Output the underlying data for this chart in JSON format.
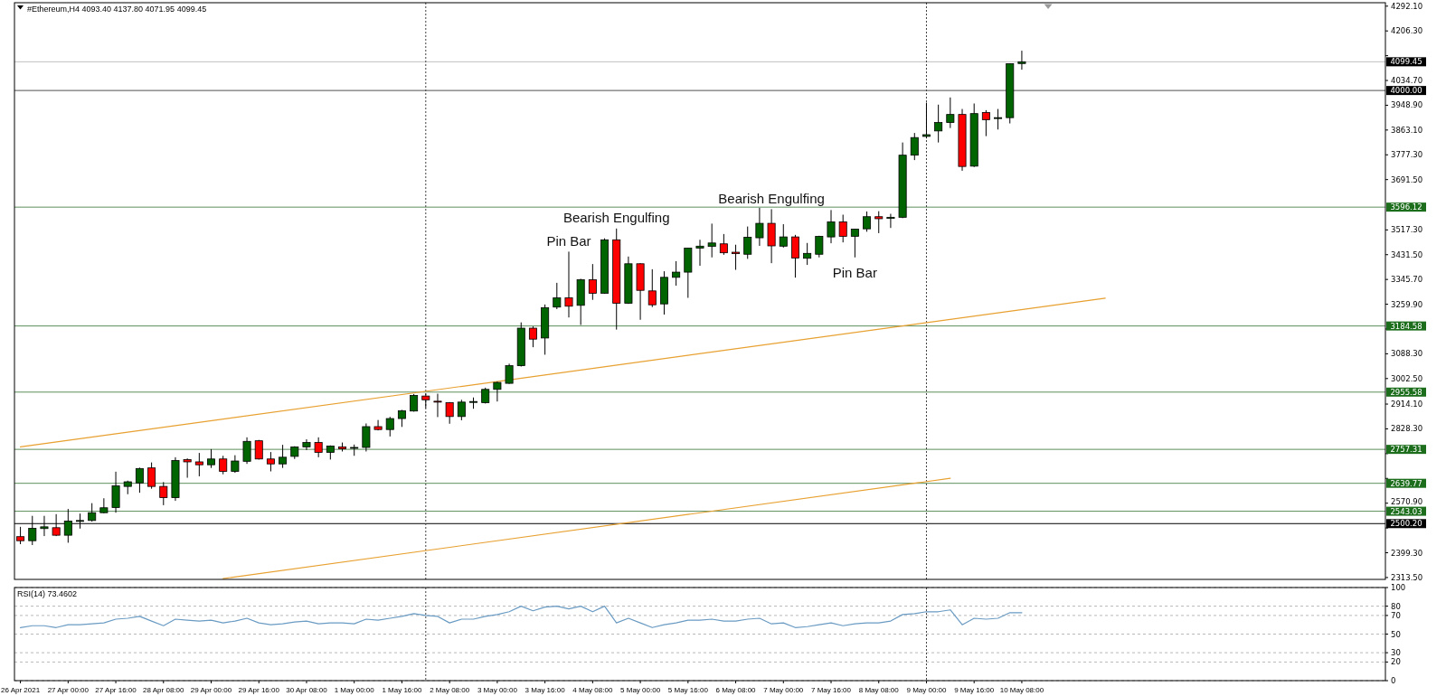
{
  "chart_data": [
    {
      "type": "candlestick",
      "title": "#Ethereum,H4 4093.40 4137.80 4071.95 4099.45",
      "x": [
        "2021-04-26T08:00",
        "2021-04-26T12:00",
        "2021-04-26T16:00",
        "2021-04-26T20:00",
        "2021-04-27T00:00",
        "2021-04-27T04:00",
        "2021-04-27T08:00",
        "2021-04-27T12:00",
        "2021-04-27T16:00",
        "2021-04-27T20:00",
        "2021-04-28T00:00",
        "2021-04-28T04:00",
        "2021-04-28T08:00",
        "2021-04-28T12:00",
        "2021-04-28T16:00",
        "2021-04-28T20:00",
        "2021-04-29T00:00",
        "2021-04-29T04:00",
        "2021-04-29T08:00",
        "2021-04-29T12:00",
        "2021-04-29T16:00",
        "2021-04-29T20:00",
        "2021-04-30T00:00",
        "2021-04-30T04:00",
        "2021-04-30T08:00",
        "2021-04-30T12:00",
        "2021-04-30T16:00",
        "2021-04-30T20:00",
        "2021-05-01T00:00",
        "2021-05-01T04:00",
        "2021-05-01T08:00",
        "2021-05-01T12:00",
        "2021-05-01T16:00",
        "2021-05-01T20:00",
        "2021-05-02T00:00",
        "2021-05-02T04:00",
        "2021-05-02T08:00",
        "2021-05-02T12:00",
        "2021-05-02T16:00",
        "2021-05-02T20:00",
        "2021-05-03T00:00",
        "2021-05-03T04:00",
        "2021-05-03T08:00",
        "2021-05-03T12:00",
        "2021-05-03T16:00",
        "2021-05-03T20:00",
        "2021-05-04T00:00",
        "2021-05-04T04:00",
        "2021-05-04T08:00",
        "2021-05-04T12:00",
        "2021-05-04T16:00",
        "2021-05-04T20:00",
        "2021-05-05T00:00",
        "2021-05-05T04:00",
        "2021-05-05T08:00",
        "2021-05-05T12:00",
        "2021-05-05T16:00",
        "2021-05-05T20:00",
        "2021-05-06T00:00",
        "2021-05-06T04:00",
        "2021-05-06T08:00",
        "2021-05-06T12:00",
        "2021-05-06T16:00",
        "2021-05-06T20:00",
        "2021-05-07T00:00",
        "2021-05-07T04:00",
        "2021-05-07T08:00",
        "2021-05-07T12:00",
        "2021-05-07T16:00",
        "2021-05-07T20:00",
        "2021-05-08T00:00",
        "2021-05-08T04:00",
        "2021-05-08T08:00",
        "2021-05-08T12:00",
        "2021-05-08T16:00",
        "2021-05-08T20:00",
        "2021-05-09T00:00",
        "2021-05-09T04:00",
        "2021-05-09T08:00",
        "2021-05-09T12:00",
        "2021-05-09T16:00",
        "2021-05-09T20:00",
        "2021-05-10T00:00",
        "2021-05-10T04:00",
        "2021-05-10T08:00"
      ],
      "ohlc": [
        [
          2455,
          2489,
          2429,
          2441
        ],
        [
          2441,
          2527,
          2426,
          2484
        ],
        [
          2483,
          2527,
          2457,
          2489
        ],
        [
          2486,
          2533,
          2457,
          2460
        ],
        [
          2460,
          2551,
          2434,
          2509
        ],
        [
          2508,
          2535,
          2483,
          2511
        ],
        [
          2511,
          2571,
          2507,
          2538
        ],
        [
          2538,
          2588,
          2536,
          2555
        ],
        [
          2556,
          2680,
          2538,
          2631
        ],
        [
          2629,
          2649,
          2602,
          2645
        ],
        [
          2641,
          2694,
          2607,
          2691
        ],
        [
          2693,
          2712,
          2621,
          2629
        ],
        [
          2629,
          2644,
          2564,
          2590
        ],
        [
          2590,
          2730,
          2579,
          2719
        ],
        [
          2722,
          2726,
          2659,
          2714
        ],
        [
          2714,
          2745,
          2664,
          2704
        ],
        [
          2704,
          2758,
          2693,
          2724
        ],
        [
          2724,
          2735,
          2671,
          2681
        ],
        [
          2681,
          2737,
          2676,
          2717
        ],
        [
          2716,
          2799,
          2707,
          2785
        ],
        [
          2787,
          2790,
          2722,
          2724
        ],
        [
          2724,
          2748,
          2681,
          2707
        ],
        [
          2707,
          2773,
          2693,
          2730
        ],
        [
          2733,
          2768,
          2724,
          2766
        ],
        [
          2766,
          2792,
          2755,
          2781
        ],
        [
          2781,
          2799,
          2730,
          2747
        ],
        [
          2747,
          2771,
          2722,
          2769
        ],
        [
          2766,
          2781,
          2750,
          2759
        ],
        [
          2761,
          2774,
          2735,
          2764
        ],
        [
          2764,
          2847,
          2750,
          2836
        ],
        [
          2836,
          2859,
          2823,
          2826
        ],
        [
          2826,
          2870,
          2802,
          2864
        ],
        [
          2864,
          2894,
          2835,
          2891
        ],
        [
          2890,
          2949,
          2888,
          2944
        ],
        [
          2942,
          2950,
          2900,
          2929
        ],
        [
          2924,
          2950,
          2869,
          2921
        ],
        [
          2919,
          2921,
          2846,
          2871
        ],
        [
          2871,
          2929,
          2858,
          2921
        ],
        [
          2920,
          2937,
          2898,
          2923
        ],
        [
          2919,
          2971,
          2916,
          2965
        ],
        [
          2965,
          2992,
          2923,
          2989
        ],
        [
          2986,
          3054,
          2984,
          3047
        ],
        [
          3047,
          3197,
          3044,
          3177
        ],
        [
          3177,
          3183,
          3111,
          3139
        ],
        [
          3143,
          3259,
          3085,
          3248
        ],
        [
          3250,
          3334,
          3243,
          3282
        ],
        [
          3282,
          3442,
          3214,
          3253
        ],
        [
          3256,
          3348,
          3188,
          3345
        ],
        [
          3345,
          3399,
          3275,
          3298
        ],
        [
          3298,
          3488,
          3296,
          3483
        ],
        [
          3483,
          3522,
          3172,
          3263
        ],
        [
          3263,
          3425,
          3261,
          3400
        ],
        [
          3400,
          3402,
          3206,
          3308
        ],
        [
          3306,
          3381,
          3250,
          3258
        ],
        [
          3261,
          3374,
          3224,
          3353
        ],
        [
          3353,
          3409,
          3324,
          3371
        ],
        [
          3371,
          3455,
          3282,
          3454
        ],
        [
          3454,
          3483,
          3393,
          3461
        ],
        [
          3460,
          3539,
          3422,
          3472
        ],
        [
          3469,
          3503,
          3431,
          3438
        ],
        [
          3440,
          3466,
          3379,
          3435
        ],
        [
          3433,
          3529,
          3417,
          3492
        ],
        [
          3490,
          3594,
          3462,
          3540
        ],
        [
          3540,
          3589,
          3402,
          3462
        ],
        [
          3461,
          3537,
          3456,
          3493
        ],
        [
          3493,
          3500,
          3352,
          3420
        ],
        [
          3419,
          3472,
          3396,
          3436
        ],
        [
          3433,
          3497,
          3422,
          3495
        ],
        [
          3493,
          3586,
          3471,
          3545
        ],
        [
          3545,
          3570,
          3474,
          3495
        ],
        [
          3495,
          3521,
          3422,
          3520
        ],
        [
          3521,
          3581,
          3511,
          3563
        ],
        [
          3563,
          3582,
          3506,
          3556
        ],
        [
          3557,
          3573,
          3524,
          3561
        ],
        [
          3561,
          3820,
          3558,
          3776
        ],
        [
          3776,
          3853,
          3759,
          3837
        ],
        [
          3841,
          3958,
          3834,
          3847
        ],
        [
          3860,
          3951,
          3820,
          3889
        ],
        [
          3889,
          3976,
          3870,
          3917
        ],
        [
          3917,
          3936,
          3722,
          3737
        ],
        [
          3738,
          3955,
          3735,
          3920
        ],
        [
          3924,
          3932,
          3842,
          3899
        ],
        [
          3903,
          3936,
          3865,
          3906
        ],
        [
          3906,
          4093,
          3886,
          4093
        ],
        [
          4093.4,
          4137.8,
          4071.95,
          4099.45
        ]
      ],
      "colors": [
        "#ff0000",
        "#006400",
        "#006400",
        "#ff0000",
        "#006400",
        "#006400",
        "#006400",
        "#006400",
        "#006400",
        "#006400",
        "#006400",
        "#ff0000",
        "#ff0000",
        "#006400",
        "#ff0000",
        "#ff0000",
        "#006400",
        "#ff0000",
        "#006400",
        "#006400",
        "#ff0000",
        "#ff0000",
        "#006400",
        "#006400",
        "#006400",
        "#ff0000",
        "#006400",
        "#ff0000",
        "#006400",
        "#006400",
        "#ff0000",
        "#006400",
        "#006400",
        "#006400",
        "#ff0000",
        "#ff0000",
        "#ff0000",
        "#006400",
        "#006400",
        "#006400",
        "#006400",
        "#006400",
        "#006400",
        "#ff0000",
        "#006400",
        "#006400",
        "#ff0000",
        "#006400",
        "#ff0000",
        "#006400",
        "#ff0000",
        "#006400",
        "#ff0000",
        "#ff0000",
        "#006400",
        "#006400",
        "#006400",
        "#006400",
        "#006400",
        "#ff0000",
        "#ff0000",
        "#006400",
        "#006400",
        "#ff0000",
        "#006400",
        "#ff0000",
        "#006400",
        "#006400",
        "#006400",
        "#ff0000",
        "#006400",
        "#006400",
        "#ff0000",
        "#006400",
        "#006400",
        "#006400",
        "#006400",
        "#006400",
        "#006400",
        "#ff0000",
        "#006400",
        "#ff0000",
        "#006400",
        "#006400",
        "#006400"
      ],
      "xlim": [
        "2021-04-26T06:00",
        "2021-05-15T10:00"
      ],
      "ylim": [
        2307,
        4304
      ],
      "yticks": [
        {
          "value": 4292.1,
          "label": "4292.10"
        },
        {
          "value": 4206.3,
          "label": "4206.30"
        },
        {
          "value": 4120.5,
          "label": null
        },
        {
          "value": 4034.7,
          "label": "4034.70"
        },
        {
          "value": 3948.9,
          "label": "3948.90"
        },
        {
          "value": 3863.1,
          "label": "3863.10"
        },
        {
          "value": 3777.3,
          "label": "3777.30"
        },
        {
          "value": 3691.5,
          "label": "3691.50"
        },
        {
          "value": 3517.3,
          "label": "3517.30"
        },
        {
          "value": 3431.5,
          "label": "3431.50"
        },
        {
          "value": 3345.7,
          "label": "3345.70"
        },
        {
          "value": 3259.9,
          "label": "3259.90"
        },
        {
          "value": 3174.1,
          "label": null
        },
        {
          "value": 3088.3,
          "label": "3088.30"
        },
        {
          "value": 3002.5,
          "label": "3002.50"
        },
        {
          "value": 2914.1,
          "label": "2914.10"
        },
        {
          "value": 2828.3,
          "label": "2828.30"
        },
        {
          "value": 2742.5,
          "label": null
        },
        {
          "value": 2656.7,
          "label": null
        },
        {
          "value": 2570.9,
          "label": "2570.90"
        },
        {
          "value": 2485.1,
          "label": null
        },
        {
          "value": 2399.3,
          "label": "2399.30"
        },
        {
          "value": 2313.5,
          "label": "2313.50"
        }
      ],
      "tick_labels": "y",
      "series": [
        {
          "type": "line",
          "color": "#e8a030",
          "x": [
            "2021-04-26T08:00",
            "2021-05-11T12:00"
          ],
          "values": [
            2766,
            3281
          ]
        },
        {
          "type": "line",
          "color": "#e8a030",
          "x": [
            "2021-04-29T04:00",
            "2021-05-09T08:00"
          ],
          "values": [
            2310,
            2657
          ]
        }
      ],
      "ref_lines": [
        {
          "axis": "y",
          "value": 4099.45,
          "label": "4099.45",
          "color": "#c0c0c0"
        },
        {
          "axis": "y",
          "value": 4000,
          "label": "4000.00",
          "color": "#505050"
        },
        {
          "axis": "y",
          "value": 3596.12,
          "label": "3596.12",
          "color": "#5c8f5c"
        },
        {
          "axis": "y",
          "value": 3184.58,
          "label": "3184.58",
          "color": "#5c8f5c"
        },
        {
          "axis": "y",
          "value": 2955.58,
          "label": "2955.58",
          "color": "#5c8f5c"
        },
        {
          "axis": "y",
          "value": 2757.31,
          "label": "2757.31",
          "color": "#5c8f5c"
        },
        {
          "axis": "y",
          "value": 2639.77,
          "label": "2639.77",
          "color": "#5c8f5c"
        },
        {
          "axis": "y",
          "value": 2543.03,
          "label": "2543.03",
          "color": "#5c8f5c"
        },
        {
          "axis": "y",
          "value": 2500.2,
          "label": "2500.20",
          "color": "#000000"
        },
        {
          "axis": "x",
          "value": "2021-05-02T00:00",
          "color": "#404040",
          "line_style": "dotted"
        },
        {
          "axis": "x",
          "value": "2021-05-09T00:00",
          "color": "#404040",
          "line_style": "dotted"
        }
      ],
      "annotations": [
        {
          "text": "Pin Bar",
          "x": "2021-05-04T00:00",
          "y": 3442
        },
        {
          "text": "Bearish Engulfing",
          "x": "2021-05-04T16:00",
          "y": 3522
        },
        {
          "text": "Bearish Engulfing",
          "x": "2021-05-06T20:00",
          "y": 3589
        },
        {
          "text": "Pin Bar",
          "x": "2021-05-08T00:00",
          "y": 3422
        }
      ]
    },
    {
      "type": "line",
      "title": "RSI(14) 73.4602",
      "x": [
        "2021-04-26T08:00",
        "2021-04-26T12:00",
        "2021-04-26T16:00",
        "2021-04-26T20:00",
        "2021-04-27T00:00",
        "2021-04-27T04:00",
        "2021-04-27T08:00",
        "2021-04-27T12:00",
        "2021-04-27T16:00",
        "2021-04-27T20:00",
        "2021-04-28T00:00",
        "2021-04-28T04:00",
        "2021-04-28T08:00",
        "2021-04-28T12:00",
        "2021-04-28T16:00",
        "2021-04-28T20:00",
        "2021-04-29T00:00",
        "2021-04-29T04:00",
        "2021-04-29T08:00",
        "2021-04-29T12:00",
        "2021-04-29T16:00",
        "2021-04-29T20:00",
        "2021-04-30T00:00",
        "2021-04-30T04:00",
        "2021-04-30T08:00",
        "2021-04-30T12:00",
        "2021-04-30T16:00",
        "2021-04-30T20:00",
        "2021-05-01T00:00",
        "2021-05-01T04:00",
        "2021-05-01T08:00",
        "2021-05-01T12:00",
        "2021-05-01T16:00",
        "2021-05-01T20:00",
        "2021-05-02T00:00",
        "2021-05-02T04:00",
        "2021-05-02T08:00",
        "2021-05-02T12:00",
        "2021-05-02T16:00",
        "2021-05-02T20:00",
        "2021-05-03T00:00",
        "2021-05-03T04:00",
        "2021-05-03T08:00",
        "2021-05-03T12:00",
        "2021-05-03T16:00",
        "2021-05-03T20:00",
        "2021-05-04T00:00",
        "2021-05-04T04:00",
        "2021-05-04T08:00",
        "2021-05-04T12:00",
        "2021-05-04T16:00",
        "2021-05-04T20:00",
        "2021-05-05T00:00",
        "2021-05-05T04:00",
        "2021-05-05T08:00",
        "2021-05-05T12:00",
        "2021-05-05T16:00",
        "2021-05-05T20:00",
        "2021-05-06T00:00",
        "2021-05-06T04:00",
        "2021-05-06T08:00",
        "2021-05-06T12:00",
        "2021-05-06T16:00",
        "2021-05-06T20:00",
        "2021-05-07T00:00",
        "2021-05-07T04:00",
        "2021-05-07T08:00",
        "2021-05-07T12:00",
        "2021-05-07T16:00",
        "2021-05-07T20:00",
        "2021-05-08T00:00",
        "2021-05-08T04:00",
        "2021-05-08T08:00",
        "2021-05-08T12:00",
        "2021-05-08T16:00",
        "2021-05-08T20:00",
        "2021-05-09T00:00",
        "2021-05-09T04:00",
        "2021-05-09T08:00",
        "2021-05-09T12:00",
        "2021-05-09T16:00",
        "2021-05-09T20:00",
        "2021-05-10T00:00",
        "2021-05-10T04:00",
        "2021-05-10T08:00"
      ],
      "series": [
        {
          "color": "#6a9bc3",
          "values": [
            57,
            59,
            59,
            57,
            60,
            60,
            61,
            62,
            66,
            67,
            69,
            64,
            59,
            66,
            65,
            64,
            65,
            62,
            64,
            67,
            62,
            60,
            61,
            63,
            64,
            61,
            62,
            62,
            61,
            66,
            65,
            67,
            69,
            72,
            70,
            69,
            62,
            66,
            66,
            69,
            71,
            74,
            80,
            75,
            79,
            80,
            77,
            80,
            74,
            80,
            62,
            67,
            62,
            57,
            60,
            62,
            65,
            65,
            66,
            64,
            64,
            66,
            67,
            61,
            62,
            57,
            58,
            60,
            62,
            59,
            61,
            62,
            62,
            64,
            71,
            72,
            74,
            74,
            76,
            60,
            67,
            66,
            67,
            73,
            73
          ]
        }
      ],
      "xlim": [
        "2021-04-26T06:00",
        "2021-05-15T10:00"
      ],
      "ylim": [
        0,
        100
      ],
      "yticks": [
        100,
        80,
        70,
        50,
        30,
        20,
        0
      ],
      "xticks": [
        {
          "value": "2021-04-26T08:00",
          "label": "26 Apr 2021"
        },
        {
          "value": "2021-04-27T00:00",
          "label": "27 Apr 00:00"
        },
        {
          "value": "2021-04-27T16:00",
          "label": "27 Apr 16:00"
        },
        {
          "value": "2021-04-28T08:00",
          "label": "28 Apr 08:00"
        },
        {
          "value": "2021-04-29T00:00",
          "label": "29 Apr 00:00"
        },
        {
          "value": "2021-04-29T16:00",
          "label": "29 Apr 16:00"
        },
        {
          "value": "2021-04-30T08:00",
          "label": "30 Apr 08:00"
        },
        {
          "value": "2021-05-01T00:00",
          "label": "1 May 00:00"
        },
        {
          "value": "2021-05-01T16:00",
          "label": "1 May 16:00"
        },
        {
          "value": "2021-05-02T08:00",
          "label": "2 May 08:00"
        },
        {
          "value": "2021-05-03T00:00",
          "label": "3 May 00:00"
        },
        {
          "value": "2021-05-03T16:00",
          "label": "3 May 16:00"
        },
        {
          "value": "2021-05-04T08:00",
          "label": "4 May 08:00"
        },
        {
          "value": "2021-05-05T00:00",
          "label": "5 May 00:00"
        },
        {
          "value": "2021-05-05T16:00",
          "label": "5 May 16:00"
        },
        {
          "value": "2021-05-06T08:00",
          "label": "6 May 08:00"
        },
        {
          "value": "2021-05-07T00:00",
          "label": "7 May 00:00"
        },
        {
          "value": "2021-05-07T16:00",
          "label": "7 May 16:00"
        },
        {
          "value": "2021-05-08T08:00",
          "label": "8 May 08:00"
        },
        {
          "value": "2021-05-09T00:00",
          "label": "9 May 00:00"
        },
        {
          "value": "2021-05-09T16:00",
          "label": "9 May 16:00"
        },
        {
          "value": "2021-05-10T08:00",
          "label": "10 May 08:00"
        }
      ],
      "grid": "y",
      "ref_lines": [
        {
          "axis": "x",
          "value": "2021-05-02T00:00",
          "color": "#404040",
          "line_style": "dotted"
        },
        {
          "axis": "x",
          "value": "2021-05-09T00:00",
          "color": "#404040",
          "line_style": "dotted"
        }
      ]
    }
  ]
}
